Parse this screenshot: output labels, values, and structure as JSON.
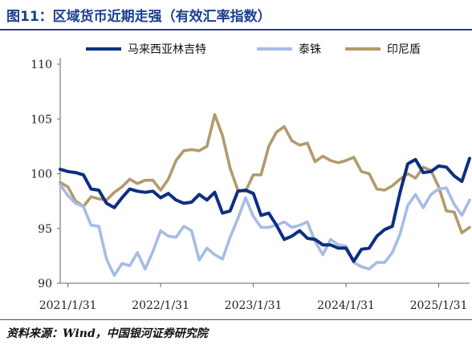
{
  "title": "图11：区域货币近期走强（有效汇率指数）",
  "source": "资料来源：Wind，中国银河证券研究院",
  "chart_data": {
    "type": "line",
    "x_ticks": [
      "2021/1/31",
      "2022/1/31",
      "2023/1/31",
      "2024/1/31",
      "2025/1/31"
    ],
    "y_ticks": [
      90,
      95,
      100,
      105,
      110
    ],
    "ylim": [
      90,
      110
    ],
    "xlim": [
      "2020/12/31",
      "2025/5/31"
    ],
    "grid": false,
    "legend_position": "top",
    "x": [
      "2020/12",
      "2021/1",
      "2021/2",
      "2021/3",
      "2021/4",
      "2021/5",
      "2021/6",
      "2021/7",
      "2021/8",
      "2021/9",
      "2021/10",
      "2021/11",
      "2021/12",
      "2022/1",
      "2022/2",
      "2022/3",
      "2022/4",
      "2022/5",
      "2022/6",
      "2022/7",
      "2022/8",
      "2022/9",
      "2022/10",
      "2022/11",
      "2022/12",
      "2023/1",
      "2023/2",
      "2023/3",
      "2023/4",
      "2023/5",
      "2023/6",
      "2023/7",
      "2023/8",
      "2023/9",
      "2023/10",
      "2023/11",
      "2023/12",
      "2024/1",
      "2024/2",
      "2024/3",
      "2024/4",
      "2024/5",
      "2024/6",
      "2024/7",
      "2024/8",
      "2024/9",
      "2024/10",
      "2024/11",
      "2024/12",
      "2025/1",
      "2025/2",
      "2025/3",
      "2025/4",
      "2025/5"
    ],
    "series": [
      {
        "name": "马来西亚林吉特",
        "color": "#0d2f80",
        "values": [
          100.4,
          100.2,
          100.1,
          99.9,
          98.6,
          98.5,
          97.3,
          96.9,
          97.8,
          98.6,
          98.4,
          98.3,
          98.4,
          97.8,
          98.2,
          97.6,
          97.3,
          97.4,
          98.1,
          97.6,
          98.3,
          96.4,
          96.6,
          98.4,
          98.5,
          98.2,
          96.2,
          96.4,
          95.3,
          94.0,
          94.3,
          94.8,
          94.1,
          94.0,
          93.5,
          93.5,
          93.2,
          93.2,
          92.0,
          93.1,
          93.2,
          94.3,
          94.9,
          95.2,
          98.3,
          100.9,
          101.3,
          100.1,
          100.2,
          100.7,
          100.6,
          99.8,
          99.3,
          101.4
        ]
      },
      {
        "name": "泰铢",
        "color": "#a7bce3",
        "values": [
          99.0,
          98.0,
          97.3,
          97.0,
          95.3,
          95.2,
          92.2,
          90.7,
          91.8,
          91.6,
          92.8,
          91.3,
          92.9,
          94.8,
          94.3,
          94.2,
          95.2,
          94.8,
          92.1,
          93.2,
          92.6,
          92.2,
          94.2,
          95.9,
          97.8,
          96.1,
          95.1,
          95.1,
          95.3,
          95.6,
          95.1,
          95.3,
          95.6,
          93.8,
          92.6,
          94.0,
          93.5,
          93.4,
          91.9,
          91.5,
          91.3,
          91.9,
          91.9,
          92.8,
          94.5,
          97.1,
          98.1,
          96.9,
          98.1,
          98.6,
          98.7,
          97.2,
          96.2,
          97.6
        ]
      },
      {
        "name": "印尼盾",
        "color": "#b39a6c",
        "values": [
          99.2,
          98.8,
          97.5,
          97.0,
          97.9,
          97.7,
          97.6,
          98.3,
          98.8,
          99.5,
          99.1,
          99.4,
          99.4,
          98.5,
          99.5,
          101.2,
          102.1,
          102.2,
          102.1,
          102.5,
          105.4,
          103.5,
          100.5,
          98.5,
          98.4,
          99.9,
          99.9,
          102.5,
          103.8,
          104.3,
          103.0,
          102.6,
          102.8,
          101.1,
          101.6,
          101.2,
          101.0,
          101.2,
          101.5,
          100.2,
          100.0,
          98.6,
          98.5,
          98.9,
          99.5,
          100.0,
          99.6,
          100.6,
          100.3,
          98.8,
          96.6,
          96.5,
          94.6,
          95.1
        ]
      }
    ]
  }
}
